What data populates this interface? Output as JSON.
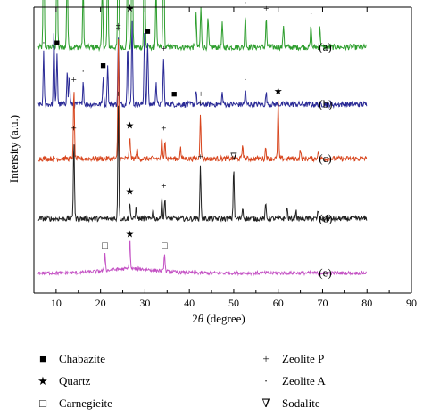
{
  "chart_data": {
    "type": "line",
    "xlabel_prefix": "2",
    "xlabel_theta": "θ",
    "xlabel_suffix": " (degree)",
    "ylabel": "Intensity (a.u.)",
    "xlim": [
      5,
      90
    ],
    "xticks": [
      10,
      20,
      30,
      40,
      50,
      60,
      70,
      80,
      90
    ],
    "y_tick_labels": "none",
    "grid": false,
    "legend_position": "below",
    "series": [
      {
        "name": "(a)",
        "color": "#2e9e2e",
        "baseline": 0.86,
        "noise": 0.01,
        "peaks": [
          [
            7.2,
            0.55
          ],
          [
            10.2,
            0.4
          ],
          [
            12.5,
            0.3
          ],
          [
            16.1,
            0.22
          ],
          [
            20.4,
            0.22
          ],
          [
            21.6,
            0.33
          ],
          [
            24.0,
            0.68
          ],
          [
            26.1,
            0.44
          ],
          [
            27.1,
            0.5
          ],
          [
            29.9,
            0.62
          ],
          [
            32.5,
            0.22
          ],
          [
            34.2,
            0.5
          ],
          [
            41.5,
            0.12
          ],
          [
            42.6,
            0.14
          ],
          [
            44.2,
            0.1
          ],
          [
            47.4,
            0.08
          ],
          [
            52.6,
            0.12
          ],
          [
            57.3,
            0.1
          ],
          [
            61.2,
            0.08
          ],
          [
            67.4,
            0.08
          ],
          [
            69.4,
            0.07
          ]
        ]
      },
      {
        "name": "(b)",
        "color": "#2a2a96",
        "baseline": 0.66,
        "noise": 0.01,
        "peaks": [
          [
            7.2,
            0.18
          ],
          [
            9.5,
            0.26
          ],
          [
            10.2,
            0.18
          ],
          [
            12.5,
            0.12
          ],
          [
            13.0,
            0.1
          ],
          [
            16.1,
            0.08
          ],
          [
            20.6,
            0.1
          ],
          [
            21.6,
            0.14
          ],
          [
            24.0,
            0.24
          ],
          [
            26.1,
            0.22
          ],
          [
            27.1,
            0.3
          ],
          [
            29.9,
            0.26
          ],
          [
            30.6,
            0.22
          ],
          [
            32.5,
            0.08
          ],
          [
            34.2,
            0.16
          ],
          [
            41.5,
            0.05
          ],
          [
            47.4,
            0.04
          ],
          [
            52.6,
            0.05
          ],
          [
            57.3,
            0.04
          ]
        ]
      },
      {
        "name": "(c)",
        "color": "#d8461e",
        "baseline": 0.47,
        "noise": 0.009,
        "peaks": [
          [
            14.0,
            0.24
          ],
          [
            24.0,
            0.42
          ],
          [
            26.6,
            0.08
          ],
          [
            28.2,
            0.04
          ],
          [
            33.8,
            0.07
          ],
          [
            34.5,
            0.07
          ],
          [
            38.0,
            0.04
          ],
          [
            42.5,
            0.16
          ],
          [
            52.0,
            0.05
          ],
          [
            57.2,
            0.04
          ],
          [
            60.0,
            0.2
          ],
          [
            65.0,
            0.03
          ],
          [
            69.0,
            0.03
          ]
        ]
      },
      {
        "name": "(d)",
        "color": "#222222",
        "baseline": 0.26,
        "noise": 0.009,
        "peaks": [
          [
            14.0,
            0.28
          ],
          [
            24.0,
            0.4
          ],
          [
            26.6,
            0.06
          ],
          [
            28.0,
            0.04
          ],
          [
            31.8,
            0.04
          ],
          [
            33.8,
            0.08
          ],
          [
            34.5,
            0.07
          ],
          [
            42.5,
            0.18
          ],
          [
            50.0,
            0.18
          ],
          [
            52.0,
            0.04
          ],
          [
            57.2,
            0.05
          ],
          [
            62.0,
            0.04
          ],
          [
            64.0,
            0.03
          ],
          [
            69.0,
            0.03
          ]
        ]
      },
      {
        "name": "(e)",
        "color": "#c452c4",
        "baseline": 0.07,
        "noise": 0.006,
        "peaks": [
          [
            21.0,
            0.06
          ],
          [
            26.6,
            0.1
          ],
          [
            34.4,
            0.06
          ]
        ]
      }
    ],
    "markers": [
      {
        "series": "(a)",
        "x": 24.0,
        "symbol": "+"
      },
      {
        "series": "(a)",
        "x": 34.2,
        "symbol": "+"
      },
      {
        "series": "(a)",
        "x": 21.6,
        "symbol": "+"
      },
      {
        "series": "(a)",
        "x": 12.5,
        "symbol": "+"
      },
      {
        "series": "(a)",
        "x": 42.6,
        "symbol": "+"
      },
      {
        "series": "(a)",
        "x": 57.3,
        "symbol": "+"
      },
      {
        "series": "(a)",
        "x": 7.2,
        "symbol": "·"
      },
      {
        "series": "(a)",
        "x": 10.2,
        "symbol": "·"
      },
      {
        "series": "(a)",
        "x": 16.1,
        "symbol": "·"
      },
      {
        "series": "(a)",
        "x": 20.4,
        "symbol": "·"
      },
      {
        "series": "(a)",
        "x": 27.1,
        "symbol": "·"
      },
      {
        "series": "(a)",
        "x": 29.9,
        "symbol": "·"
      },
      {
        "series": "(a)",
        "x": 52.6,
        "symbol": "·"
      },
      {
        "series": "(a)",
        "x": 67.4,
        "symbol": "·"
      },
      {
        "series": "(b)",
        "x": 26.6,
        "symbol": "★"
      },
      {
        "series": "(b)",
        "x": 10.2,
        "symbol": "■"
      },
      {
        "series": "(b)",
        "x": 20.6,
        "symbol": "■"
      },
      {
        "series": "(b)",
        "x": 30.6,
        "symbol": "■"
      },
      {
        "series": "(b)",
        "x": 36.6,
        "symbol": "■"
      },
      {
        "series": "(b)",
        "x": 24.0,
        "symbol": "+"
      },
      {
        "series": "(b)",
        "x": 34.2,
        "symbol": "+"
      },
      {
        "series": "(b)",
        "x": 42.6,
        "symbol": "+"
      },
      {
        "series": "(b)",
        "x": 7.2,
        "symbol": "·"
      },
      {
        "series": "(b)",
        "x": 27.1,
        "symbol": "·"
      },
      {
        "series": "(b)",
        "x": 16.1,
        "symbol": "·"
      },
      {
        "series": "(b)",
        "x": 52.6,
        "symbol": "·"
      },
      {
        "series": "(c)",
        "x": 14.0,
        "symbol": "+"
      },
      {
        "series": "(c)",
        "x": 24.0,
        "symbol": "+"
      },
      {
        "series": "(c)",
        "x": 26.6,
        "symbol": "★"
      },
      {
        "series": "(c)",
        "x": 34.2,
        "symbol": "+"
      },
      {
        "series": "(c)",
        "x": 42.5,
        "symbol": "+"
      },
      {
        "series": "(c)",
        "x": 60.0,
        "symbol": "★"
      },
      {
        "series": "(d)",
        "x": 14.0,
        "symbol": "+"
      },
      {
        "series": "(d)",
        "x": 24.0,
        "symbol": "+"
      },
      {
        "series": "(d)",
        "x": 26.6,
        "symbol": "★"
      },
      {
        "series": "(d)",
        "x": 34.2,
        "symbol": "+"
      },
      {
        "series": "(d)",
        "x": 42.5,
        "symbol": "+"
      },
      {
        "series": "(d)",
        "x": 50.0,
        "symbol": "∇"
      },
      {
        "series": "(e)",
        "x": 21.0,
        "symbol": "□"
      },
      {
        "series": "(e)",
        "x": 26.6,
        "symbol": "★"
      },
      {
        "series": "(e)",
        "x": 34.4,
        "symbol": "□"
      }
    ]
  },
  "legend": [
    {
      "symbol": "■",
      "label": "Chabazite"
    },
    {
      "symbol": "★",
      "label": "Quartz"
    },
    {
      "symbol": "□",
      "label": "Carnegieite"
    },
    {
      "symbol": "+",
      "label": "Zeolite P"
    },
    {
      "symbol": "·",
      "label": "Zeolite A"
    },
    {
      "symbol": "∇",
      "label": "Sodalite"
    }
  ]
}
